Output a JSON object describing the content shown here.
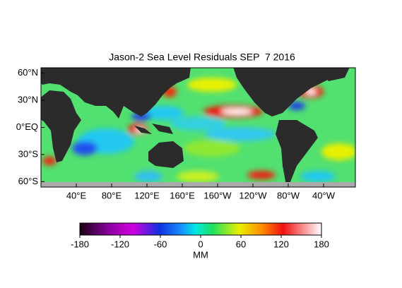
{
  "title": "Jason-2 Sea Level Residuals SEP  7 2016",
  "map": {
    "lat_range": [
      -66,
      66
    ],
    "lon_range": [
      0,
      356
    ],
    "lat_ticks": [
      {
        "value": 60,
        "label": "60°N"
      },
      {
        "value": 30,
        "label": "30°N"
      },
      {
        "value": 0,
        "label": "0°EQ"
      },
      {
        "value": -30,
        "label": "30°S"
      },
      {
        "value": -60,
        "label": "60°S"
      }
    ],
    "lon_ticks": [
      {
        "value": 40,
        "label": "40°E"
      },
      {
        "value": 80,
        "label": "80°E"
      },
      {
        "value": 120,
        "label": "120°E"
      },
      {
        "value": 160,
        "label": "160°E"
      },
      {
        "value": 200,
        "label": "160°W"
      },
      {
        "value": 240,
        "label": "120°W"
      },
      {
        "value": 280,
        "label": "80°W"
      },
      {
        "value": 320,
        "label": "40°W"
      }
    ]
  },
  "colorbar": {
    "range": [
      -180,
      180
    ],
    "ticks": [
      -180,
      -120,
      -60,
      0,
      60,
      120,
      180
    ],
    "label": "MM"
  }
}
